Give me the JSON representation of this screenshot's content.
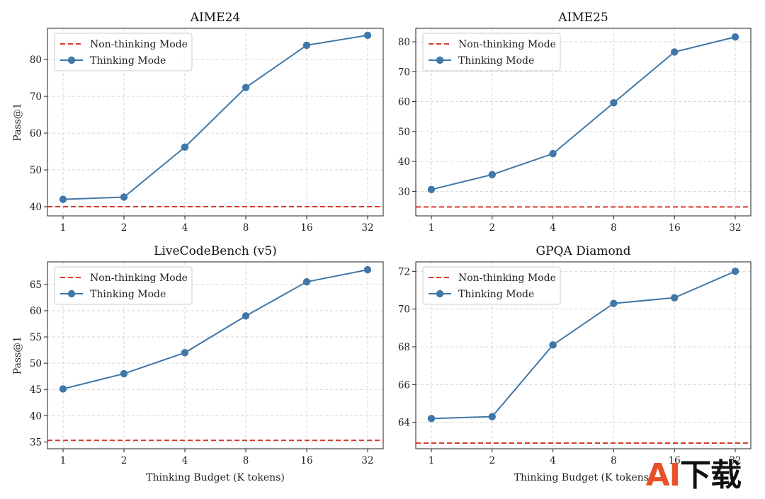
{
  "chart_data": [
    {
      "type": "line",
      "title": "AIME24",
      "ylabel": "Pass@1",
      "xlabel": "",
      "categories": [
        "1",
        "2",
        "4",
        "8",
        "16",
        "32"
      ],
      "ylim": [
        37.5,
        88.5
      ],
      "yticks": [
        40,
        50,
        60,
        70,
        80
      ],
      "baseline": 40.0,
      "series": [
        {
          "name": "Non-thinking Mode",
          "style": "dashed",
          "color": "#d9392b",
          "values": [
            40.0,
            40.0,
            40.0,
            40.0,
            40.0,
            40.0
          ]
        },
        {
          "name": "Thinking Mode",
          "style": "line-marker",
          "color": "#3f77a8",
          "values": [
            42.0,
            42.6,
            56.2,
            72.4,
            83.9,
            86.6
          ]
        }
      ],
      "legend": "upper-left",
      "grid": true
    },
    {
      "type": "line",
      "title": "AIME25",
      "ylabel": "",
      "xlabel": "",
      "categories": [
        "1",
        "2",
        "4",
        "8",
        "16",
        "32"
      ],
      "ylim": [
        21.8,
        84.5
      ],
      "yticks": [
        30,
        40,
        50,
        60,
        70,
        80
      ],
      "baseline": 24.8,
      "series": [
        {
          "name": "Non-thinking Mode",
          "style": "dashed",
          "color": "#d9392b",
          "values": [
            24.8,
            24.8,
            24.8,
            24.8,
            24.8,
            24.8
          ]
        },
        {
          "name": "Thinking Mode",
          "style": "line-marker",
          "color": "#3f77a8",
          "values": [
            30.6,
            35.6,
            42.6,
            59.6,
            76.6,
            81.6
          ]
        }
      ],
      "legend": "upper-left",
      "grid": true
    },
    {
      "type": "line",
      "title": "LiveCodeBench (v5)",
      "ylabel": "Pass@1",
      "xlabel": "Thinking Budget (K tokens)",
      "categories": [
        "1",
        "2",
        "4",
        "8",
        "16",
        "32"
      ],
      "ylim": [
        33.7,
        69.3
      ],
      "yticks": [
        35,
        40,
        45,
        50,
        55,
        60,
        65
      ],
      "baseline": 35.3,
      "series": [
        {
          "name": "Non-thinking Mode",
          "style": "dashed",
          "color": "#d9392b",
          "values": [
            35.3,
            35.3,
            35.3,
            35.3,
            35.3,
            35.3
          ]
        },
        {
          "name": "Thinking Mode",
          "style": "line-marker",
          "color": "#3f77a8",
          "values": [
            45.1,
            48.0,
            52.0,
            59.0,
            65.5,
            67.8
          ]
        }
      ],
      "legend": "upper-left",
      "grid": true
    },
    {
      "type": "line",
      "title": "GPQA Diamond",
      "ylabel": "",
      "xlabel": "Thinking Budget (K tokens)",
      "categories": [
        "1",
        "2",
        "4",
        "8",
        "16",
        "32"
      ],
      "ylim": [
        62.6,
        72.5
      ],
      "yticks": [
        64,
        66,
        68,
        70,
        72
      ],
      "baseline": 62.9,
      "series": [
        {
          "name": "Non-thinking Mode",
          "style": "dashed",
          "color": "#d9392b",
          "values": [
            62.9,
            62.9,
            62.9,
            62.9,
            62.9,
            62.9
          ]
        },
        {
          "name": "Thinking Mode",
          "style": "line-marker",
          "color": "#3f77a8",
          "values": [
            64.2,
            64.3,
            68.1,
            70.3,
            70.6,
            72.0
          ]
        }
      ],
      "legend": "upper-left",
      "grid": true
    }
  ],
  "watermark": {
    "text_a": "AI",
    "text_b": "下载"
  }
}
